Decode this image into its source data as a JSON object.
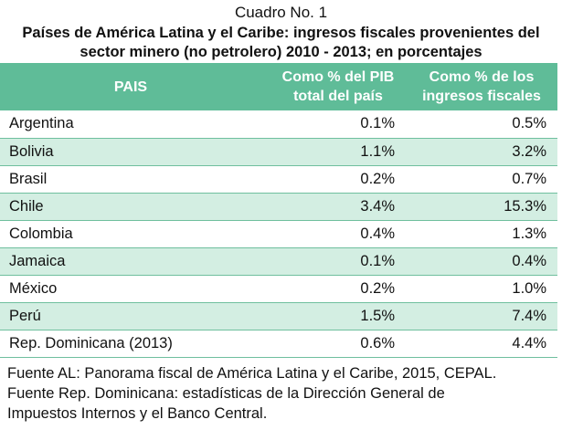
{
  "caption": "Cuadro No. 1",
  "title_line1": "Países de América Latina y el Caribe: ingresos fiscales provenientes del",
  "title_line2": "sector minero (no petrolero) 2010 - 2013; en porcentajes",
  "table": {
    "headers": {
      "pais": "PAIS",
      "pib_line1": "Como % del PIB",
      "pib_line2": "total del país",
      "ingresos_line1": "Como % de los",
      "ingresos_line2": "ingresos fiscales"
    },
    "rows": [
      {
        "country": "Argentina",
        "pib": "0.1%",
        "ingresos": "0.5%"
      },
      {
        "country": "Bolivia",
        "pib": "1.1%",
        "ingresos": "3.2%"
      },
      {
        "country": "Brasil",
        "pib": "0.2%",
        "ingresos": "0.7%"
      },
      {
        "country": "Chile",
        "pib": "3.4%",
        "ingresos": "15.3%"
      },
      {
        "country": "Colombia",
        "pib": "0.4%",
        "ingresos": "1.3%"
      },
      {
        "country": "Jamaica",
        "pib": "0.1%",
        "ingresos": "0.4%"
      },
      {
        "country": "México",
        "pib": "0.2%",
        "ingresos": "1.0%"
      },
      {
        "country": "Perú",
        "pib": "1.5%",
        "ingresos": "7.4%"
      },
      {
        "country": "Rep. Dominicana (2013)",
        "pib": "0.6%",
        "ingresos": "4.4%"
      }
    ]
  },
  "notes": {
    "line1": "Fuente AL: Panorama fiscal de América Latina y el Caribe, 2015, CEPAL.",
    "line2": "Fuente Rep. Dominicana: estadísticas de la Dirección General de",
    "line3": "Impuestos Internos y el Banco Central."
  },
  "colors": {
    "header_bg": "#5fbc98",
    "alt_row_bg": "#d3eee2",
    "row_border": "#6fbf9e"
  }
}
